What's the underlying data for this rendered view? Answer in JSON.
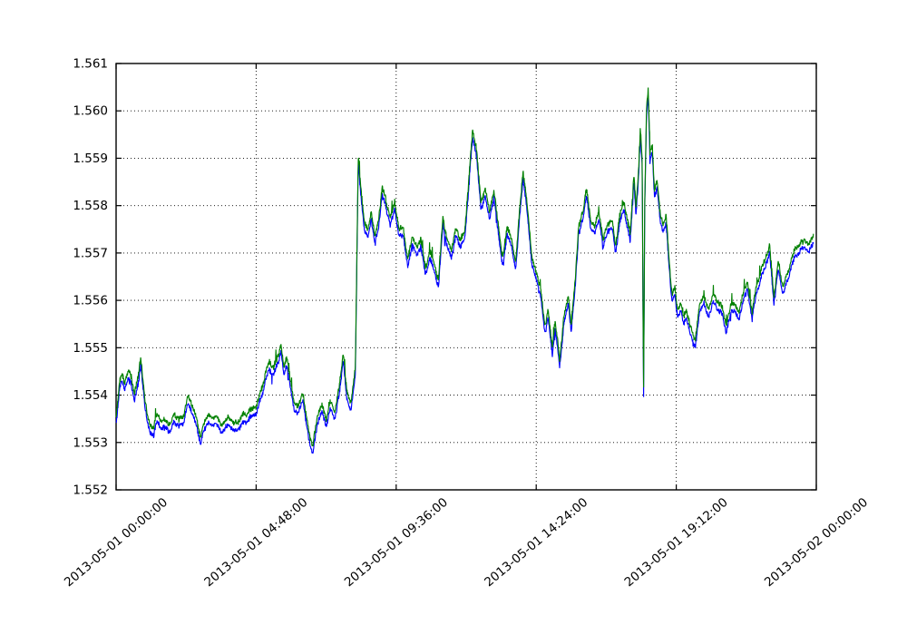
{
  "figure": {
    "background": "#ffffff",
    "title": ""
  },
  "chart_data": {
    "type": "line",
    "title": "",
    "xlabel": "",
    "ylabel": "",
    "grid": {
      "visible": true,
      "style": "dotted",
      "color": "#000000"
    },
    "legend": null,
    "xlim_hours": [
      0,
      24
    ],
    "ylim": [
      1.552,
      1.561
    ],
    "y_ticks": [
      1.552,
      1.553,
      1.554,
      1.555,
      1.556,
      1.557,
      1.558,
      1.559,
      1.56,
      1.561
    ],
    "y_tick_labels": [
      "1.552",
      "1.553",
      "1.554",
      "1.555",
      "1.556",
      "1.557",
      "1.558",
      "1.559",
      "1.560",
      "1.561"
    ],
    "x_ticks": [
      {
        "hour": 0,
        "label": "2013-05-01 00:00:00"
      },
      {
        "hour": 4.8,
        "label": "2013-05-01 04:48:00"
      },
      {
        "hour": 9.6,
        "label": "2013-05-01 09:36:00"
      },
      {
        "hour": 14.4,
        "label": "2013-05-01 14:24:00"
      },
      {
        "hour": 19.2,
        "label": "2013-05-01 19:12:00"
      },
      {
        "hour": 24,
        "label": "2013-05-02 00:00:00"
      }
    ],
    "series": [
      {
        "name": "line-blue",
        "color": "#0000ff",
        "offset": -5e-05
      },
      {
        "name": "line-green",
        "color": "#008000",
        "offset": 5e-05
      }
    ],
    "data_start_hour": 0,
    "data_end_hour": 23.9,
    "noise_amplitude": 5e-05,
    "mid_anchors_hour_value": [
      [
        0.0,
        1.5534
      ],
      [
        0.05,
        1.5537
      ],
      [
        0.12,
        1.5542
      ],
      [
        0.2,
        1.5544
      ],
      [
        0.3,
        1.5542
      ],
      [
        0.42,
        1.5545
      ],
      [
        0.52,
        1.5543
      ],
      [
        0.62,
        1.5539
      ],
      [
        0.75,
        1.5543
      ],
      [
        0.85,
        1.5547
      ],
      [
        0.95,
        1.5541
      ],
      [
        1.05,
        1.5536
      ],
      [
        1.15,
        1.5533
      ],
      [
        1.28,
        1.5532
      ],
      [
        1.4,
        1.5535
      ],
      [
        1.55,
        1.5534
      ],
      [
        1.7,
        1.5534
      ],
      [
        1.85,
        1.5533
      ],
      [
        2.0,
        1.5535
      ],
      [
        2.15,
        1.5534
      ],
      [
        2.3,
        1.5535
      ],
      [
        2.45,
        1.5539
      ],
      [
        2.6,
        1.5537
      ],
      [
        2.75,
        1.5534
      ],
      [
        2.9,
        1.5531
      ],
      [
        3.0,
        1.5533
      ],
      [
        3.15,
        1.5535
      ],
      [
        3.3,
        1.5534
      ],
      [
        3.45,
        1.5535
      ],
      [
        3.6,
        1.5533
      ],
      [
        3.75,
        1.5534
      ],
      [
        3.9,
        1.5534
      ],
      [
        4.05,
        1.5533
      ],
      [
        4.2,
        1.5534
      ],
      [
        4.35,
        1.5535
      ],
      [
        4.5,
        1.5535
      ],
      [
        4.65,
        1.5536
      ],
      [
        4.8,
        1.5537
      ],
      [
        4.95,
        1.554
      ],
      [
        5.1,
        1.5543
      ],
      [
        5.25,
        1.5546
      ],
      [
        5.4,
        1.5545
      ],
      [
        5.55,
        1.5548
      ],
      [
        5.65,
        1.555
      ],
      [
        5.75,
        1.5545
      ],
      [
        5.85,
        1.5547
      ],
      [
        5.95,
        1.5543
      ],
      [
        6.1,
        1.5538
      ],
      [
        6.25,
        1.5537
      ],
      [
        6.4,
        1.554
      ],
      [
        6.5,
        1.5535
      ],
      [
        6.65,
        1.553
      ],
      [
        6.75,
        1.5529
      ],
      [
        6.9,
        1.5535
      ],
      [
        7.05,
        1.5537
      ],
      [
        7.2,
        1.5534
      ],
      [
        7.35,
        1.5538
      ],
      [
        7.5,
        1.5536
      ],
      [
        7.65,
        1.5541
      ],
      [
        7.78,
        1.5548
      ],
      [
        7.9,
        1.554
      ],
      [
        8.05,
        1.5538
      ],
      [
        8.2,
        1.5545
      ],
      [
        8.3,
        1.559
      ],
      [
        8.38,
        1.5583
      ],
      [
        8.5,
        1.5576
      ],
      [
        8.62,
        1.5574
      ],
      [
        8.75,
        1.5578
      ],
      [
        8.88,
        1.5573
      ],
      [
        9.0,
        1.5576
      ],
      [
        9.12,
        1.5583
      ],
      [
        9.25,
        1.558
      ],
      [
        9.4,
        1.5577
      ],
      [
        9.55,
        1.558
      ],
      [
        9.7,
        1.5574
      ],
      [
        9.85,
        1.5574
      ],
      [
        10.0,
        1.5568
      ],
      [
        10.15,
        1.5573
      ],
      [
        10.3,
        1.557
      ],
      [
        10.45,
        1.5572
      ],
      [
        10.6,
        1.5566
      ],
      [
        10.75,
        1.557
      ],
      [
        10.9,
        1.5567
      ],
      [
        11.05,
        1.5563
      ],
      [
        11.2,
        1.5577
      ],
      [
        11.35,
        1.5572
      ],
      [
        11.5,
        1.557
      ],
      [
        11.65,
        1.5574
      ],
      [
        11.8,
        1.5572
      ],
      [
        11.95,
        1.5574
      ],
      [
        12.1,
        1.5586
      ],
      [
        12.22,
        1.5595
      ],
      [
        12.35,
        1.5591
      ],
      [
        12.5,
        1.558
      ],
      [
        12.65,
        1.5583
      ],
      [
        12.8,
        1.5578
      ],
      [
        12.95,
        1.5582
      ],
      [
        13.1,
        1.5575
      ],
      [
        13.25,
        1.5568
      ],
      [
        13.4,
        1.5575
      ],
      [
        13.55,
        1.5572
      ],
      [
        13.7,
        1.5567
      ],
      [
        13.85,
        1.558
      ],
      [
        13.95,
        1.5587
      ],
      [
        14.1,
        1.5579
      ],
      [
        14.25,
        1.5568
      ],
      [
        14.4,
        1.5565
      ],
      [
        14.55,
        1.5562
      ],
      [
        14.7,
        1.5554
      ],
      [
        14.8,
        1.5557
      ],
      [
        14.95,
        1.5549
      ],
      [
        15.05,
        1.5555
      ],
      [
        15.2,
        1.5547
      ],
      [
        15.35,
        1.5556
      ],
      [
        15.5,
        1.556
      ],
      [
        15.6,
        1.5554
      ],
      [
        15.72,
        1.5562
      ],
      [
        15.85,
        1.5575
      ],
      [
        16.0,
        1.5578
      ],
      [
        16.12,
        1.5583
      ],
      [
        16.25,
        1.5576
      ],
      [
        16.4,
        1.5575
      ],
      [
        16.55,
        1.5578
      ],
      [
        16.7,
        1.5572
      ],
      [
        16.85,
        1.5575
      ],
      [
        17.0,
        1.5576
      ],
      [
        17.12,
        1.5571
      ],
      [
        17.25,
        1.5577
      ],
      [
        17.4,
        1.558
      ],
      [
        17.52,
        1.5576
      ],
      [
        17.62,
        1.5573
      ],
      [
        17.75,
        1.5586
      ],
      [
        17.82,
        1.5579
      ],
      [
        17.9,
        1.5586
      ],
      [
        17.97,
        1.5596
      ],
      [
        18.03,
        1.5589
      ],
      [
        18.08,
        1.5539
      ],
      [
        18.12,
        1.558
      ],
      [
        18.18,
        1.5599
      ],
      [
        18.24,
        1.5604
      ],
      [
        18.3,
        1.559
      ],
      [
        18.38,
        1.5592
      ],
      [
        18.45,
        1.5583
      ],
      [
        18.55,
        1.5585
      ],
      [
        18.65,
        1.5577
      ],
      [
        18.75,
        1.5575
      ],
      [
        18.85,
        1.5577
      ],
      [
        18.95,
        1.5568
      ],
      [
        19.05,
        1.5561
      ],
      [
        19.15,
        1.5562
      ],
      [
        19.25,
        1.5557
      ],
      [
        19.35,
        1.5559
      ],
      [
        19.45,
        1.5555
      ],
      [
        19.55,
        1.5557
      ],
      [
        19.68,
        1.5554
      ],
      [
        19.85,
        1.5551
      ],
      [
        20.0,
        1.5558
      ],
      [
        20.15,
        1.556
      ],
      [
        20.3,
        1.5557
      ],
      [
        20.45,
        1.5561
      ],
      [
        20.6,
        1.5559
      ],
      [
        20.75,
        1.5558
      ],
      [
        20.9,
        1.5554
      ],
      [
        21.05,
        1.5558
      ],
      [
        21.2,
        1.5559
      ],
      [
        21.35,
        1.5556
      ],
      [
        21.5,
        1.5561
      ],
      [
        21.65,
        1.5563
      ],
      [
        21.8,
        1.5557
      ],
      [
        21.95,
        1.5562
      ],
      [
        22.1,
        1.5565
      ],
      [
        22.25,
        1.5568
      ],
      [
        22.4,
        1.5571
      ],
      [
        22.55,
        1.556
      ],
      [
        22.7,
        1.5567
      ],
      [
        22.85,
        1.5562
      ],
      [
        23.0,
        1.5565
      ],
      [
        23.15,
        1.5568
      ],
      [
        23.3,
        1.557
      ],
      [
        23.45,
        1.5571
      ],
      [
        23.6,
        1.5572
      ],
      [
        23.75,
        1.5571
      ],
      [
        23.9,
        1.5573
      ]
    ]
  }
}
